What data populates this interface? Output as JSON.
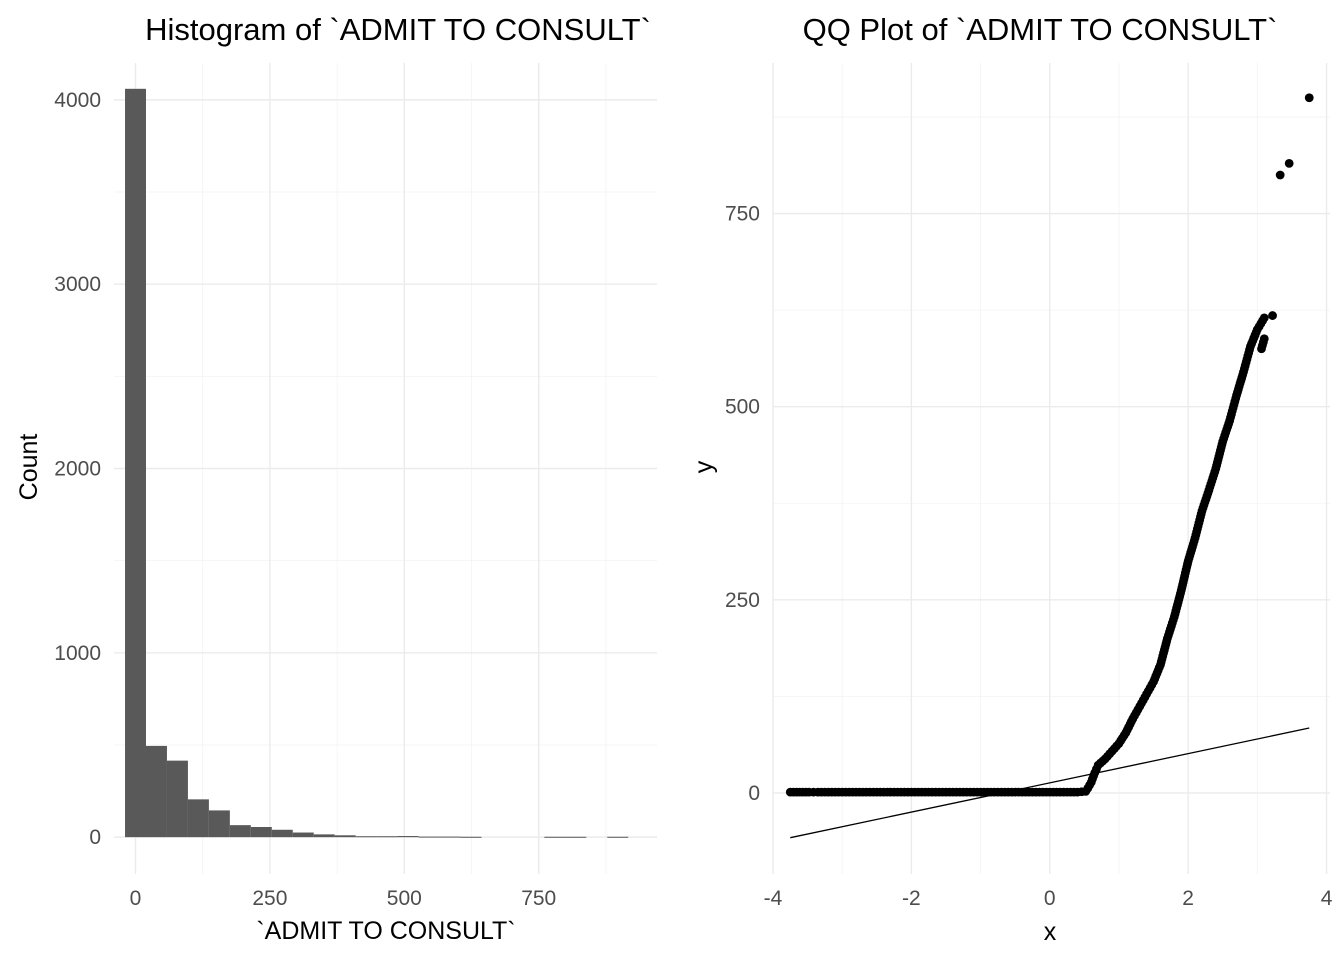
{
  "chart_data": [
    {
      "type": "bar",
      "title": "Histogram of `ADMIT TO CONSULT`",
      "xlabel": "`ADMIT TO CONSULT`",
      "ylabel": "Count",
      "xlim": [
        -40,
        970
      ],
      "ylim": [
        -200,
        4200
      ],
      "xticks": [
        0,
        250,
        500,
        750
      ],
      "xtick_labels": [
        "0",
        "250",
        "500",
        "750"
      ],
      "yticks": [
        0,
        1000,
        2000,
        3000,
        4000
      ],
      "ytick_labels": [
        "0",
        "1000",
        "2000",
        "3000",
        "4000"
      ],
      "grid": true,
      "bar_color": "#595959",
      "bins": [
        {
          "x0": -19.5,
          "x1": 19.5,
          "count": 4060
        },
        {
          "x0": 19.5,
          "x1": 58.5,
          "count": 495
        },
        {
          "x0": 58.5,
          "x1": 97.5,
          "count": 415
        },
        {
          "x0": 97.5,
          "x1": 136.5,
          "count": 205
        },
        {
          "x0": 136.5,
          "x1": 175.5,
          "count": 145
        },
        {
          "x0": 175.5,
          "x1": 214.5,
          "count": 65
        },
        {
          "x0": 214.5,
          "x1": 253.5,
          "count": 55
        },
        {
          "x0": 253.5,
          "x1": 292.5,
          "count": 40
        },
        {
          "x0": 292.5,
          "x1": 331.5,
          "count": 25
        },
        {
          "x0": 331.5,
          "x1": 370.5,
          "count": 15
        },
        {
          "x0": 370.5,
          "x1": 409.5,
          "count": 10
        },
        {
          "x0": 409.5,
          "x1": 448.5,
          "count": 5
        },
        {
          "x0": 448.5,
          "x1": 487.5,
          "count": 5
        },
        {
          "x0": 487.5,
          "x1": 526.5,
          "count": 6
        },
        {
          "x0": 526.5,
          "x1": 565.5,
          "count": 3
        },
        {
          "x0": 565.5,
          "x1": 604.5,
          "count": 3
        },
        {
          "x0": 604.5,
          "x1": 643.5,
          "count": 2
        },
        {
          "x0": 643.5,
          "x1": 682.5,
          "count": 0
        },
        {
          "x0": 682.5,
          "x1": 721.5,
          "count": 0
        },
        {
          "x0": 721.5,
          "x1": 760.5,
          "count": 0
        },
        {
          "x0": 760.5,
          "x1": 799.5,
          "count": 2
        },
        {
          "x0": 799.5,
          "x1": 838.5,
          "count": 2
        },
        {
          "x0": 838.5,
          "x1": 877.5,
          "count": 0
        },
        {
          "x0": 877.5,
          "x1": 916.5,
          "count": 2
        }
      ]
    },
    {
      "type": "scatter",
      "title": "QQ Plot of `ADMIT TO CONSULT`",
      "xlabel": "x",
      "ylabel": "y",
      "xlim": [
        -4.0,
        4.05
      ],
      "ylim": [
        -105,
        945
      ],
      "xticks": [
        -4,
        -2,
        0,
        2,
        4
      ],
      "xtick_labels": [
        "-4",
        "-2",
        "0",
        "2",
        "4"
      ],
      "yticks": [
        0,
        250,
        500,
        750
      ],
      "ytick_labels": [
        "0",
        "250",
        "500",
        "750"
      ],
      "grid": true,
      "point_color": "#000000",
      "reference_line": {
        "x1": -3.75,
        "y1": -58,
        "x2": 3.75,
        "y2": 84
      },
      "points": [
        [
          -3.75,
          1
        ],
        [
          -3.48,
          1
        ],
        [
          -3.35,
          1
        ],
        [
          -3.25,
          1
        ],
        [
          -3.15,
          1
        ],
        [
          -3.05,
          1
        ],
        [
          -2.95,
          1
        ],
        [
          -2.85,
          1
        ],
        [
          -2.75,
          1
        ],
        [
          -2.6,
          1
        ],
        [
          -2.45,
          1
        ],
        [
          -2.3,
          1
        ],
        [
          -2.15,
          1
        ],
        [
          -2.0,
          1
        ],
        [
          -1.8,
          1
        ],
        [
          -1.6,
          1
        ],
        [
          -1.4,
          1
        ],
        [
          -1.2,
          1
        ],
        [
          -1.0,
          1
        ],
        [
          -0.8,
          1
        ],
        [
          -0.6,
          1
        ],
        [
          -0.4,
          1
        ],
        [
          -0.2,
          1
        ],
        [
          0.0,
          1
        ],
        [
          0.2,
          1
        ],
        [
          0.4,
          1
        ],
        [
          0.52,
          2
        ],
        [
          0.55,
          6
        ],
        [
          0.6,
          14
        ],
        [
          0.65,
          26
        ],
        [
          0.7,
          36
        ],
        [
          0.8,
          44
        ],
        [
          0.9,
          54
        ],
        [
          1.0,
          64
        ],
        [
          1.1,
          78
        ],
        [
          1.2,
          96
        ],
        [
          1.3,
          112
        ],
        [
          1.4,
          128
        ],
        [
          1.5,
          144
        ],
        [
          1.6,
          166
        ],
        [
          1.7,
          200
        ],
        [
          1.8,
          228
        ],
        [
          1.9,
          262
        ],
        [
          2.0,
          300
        ],
        [
          2.1,
          330
        ],
        [
          2.2,
          365
        ],
        [
          2.3,
          392
        ],
        [
          2.4,
          420
        ],
        [
          2.5,
          455
        ],
        [
          2.6,
          482
        ],
        [
          2.7,
          515
        ],
        [
          2.8,
          545
        ],
        [
          2.9,
          578
        ],
        [
          3.0,
          600
        ],
        [
          3.1,
          615
        ],
        [
          3.06,
          575
        ],
        [
          3.1,
          588
        ],
        [
          3.22,
          618
        ],
        [
          3.33,
          800
        ],
        [
          3.46,
          815
        ],
        [
          3.75,
          900
        ]
      ]
    }
  ]
}
